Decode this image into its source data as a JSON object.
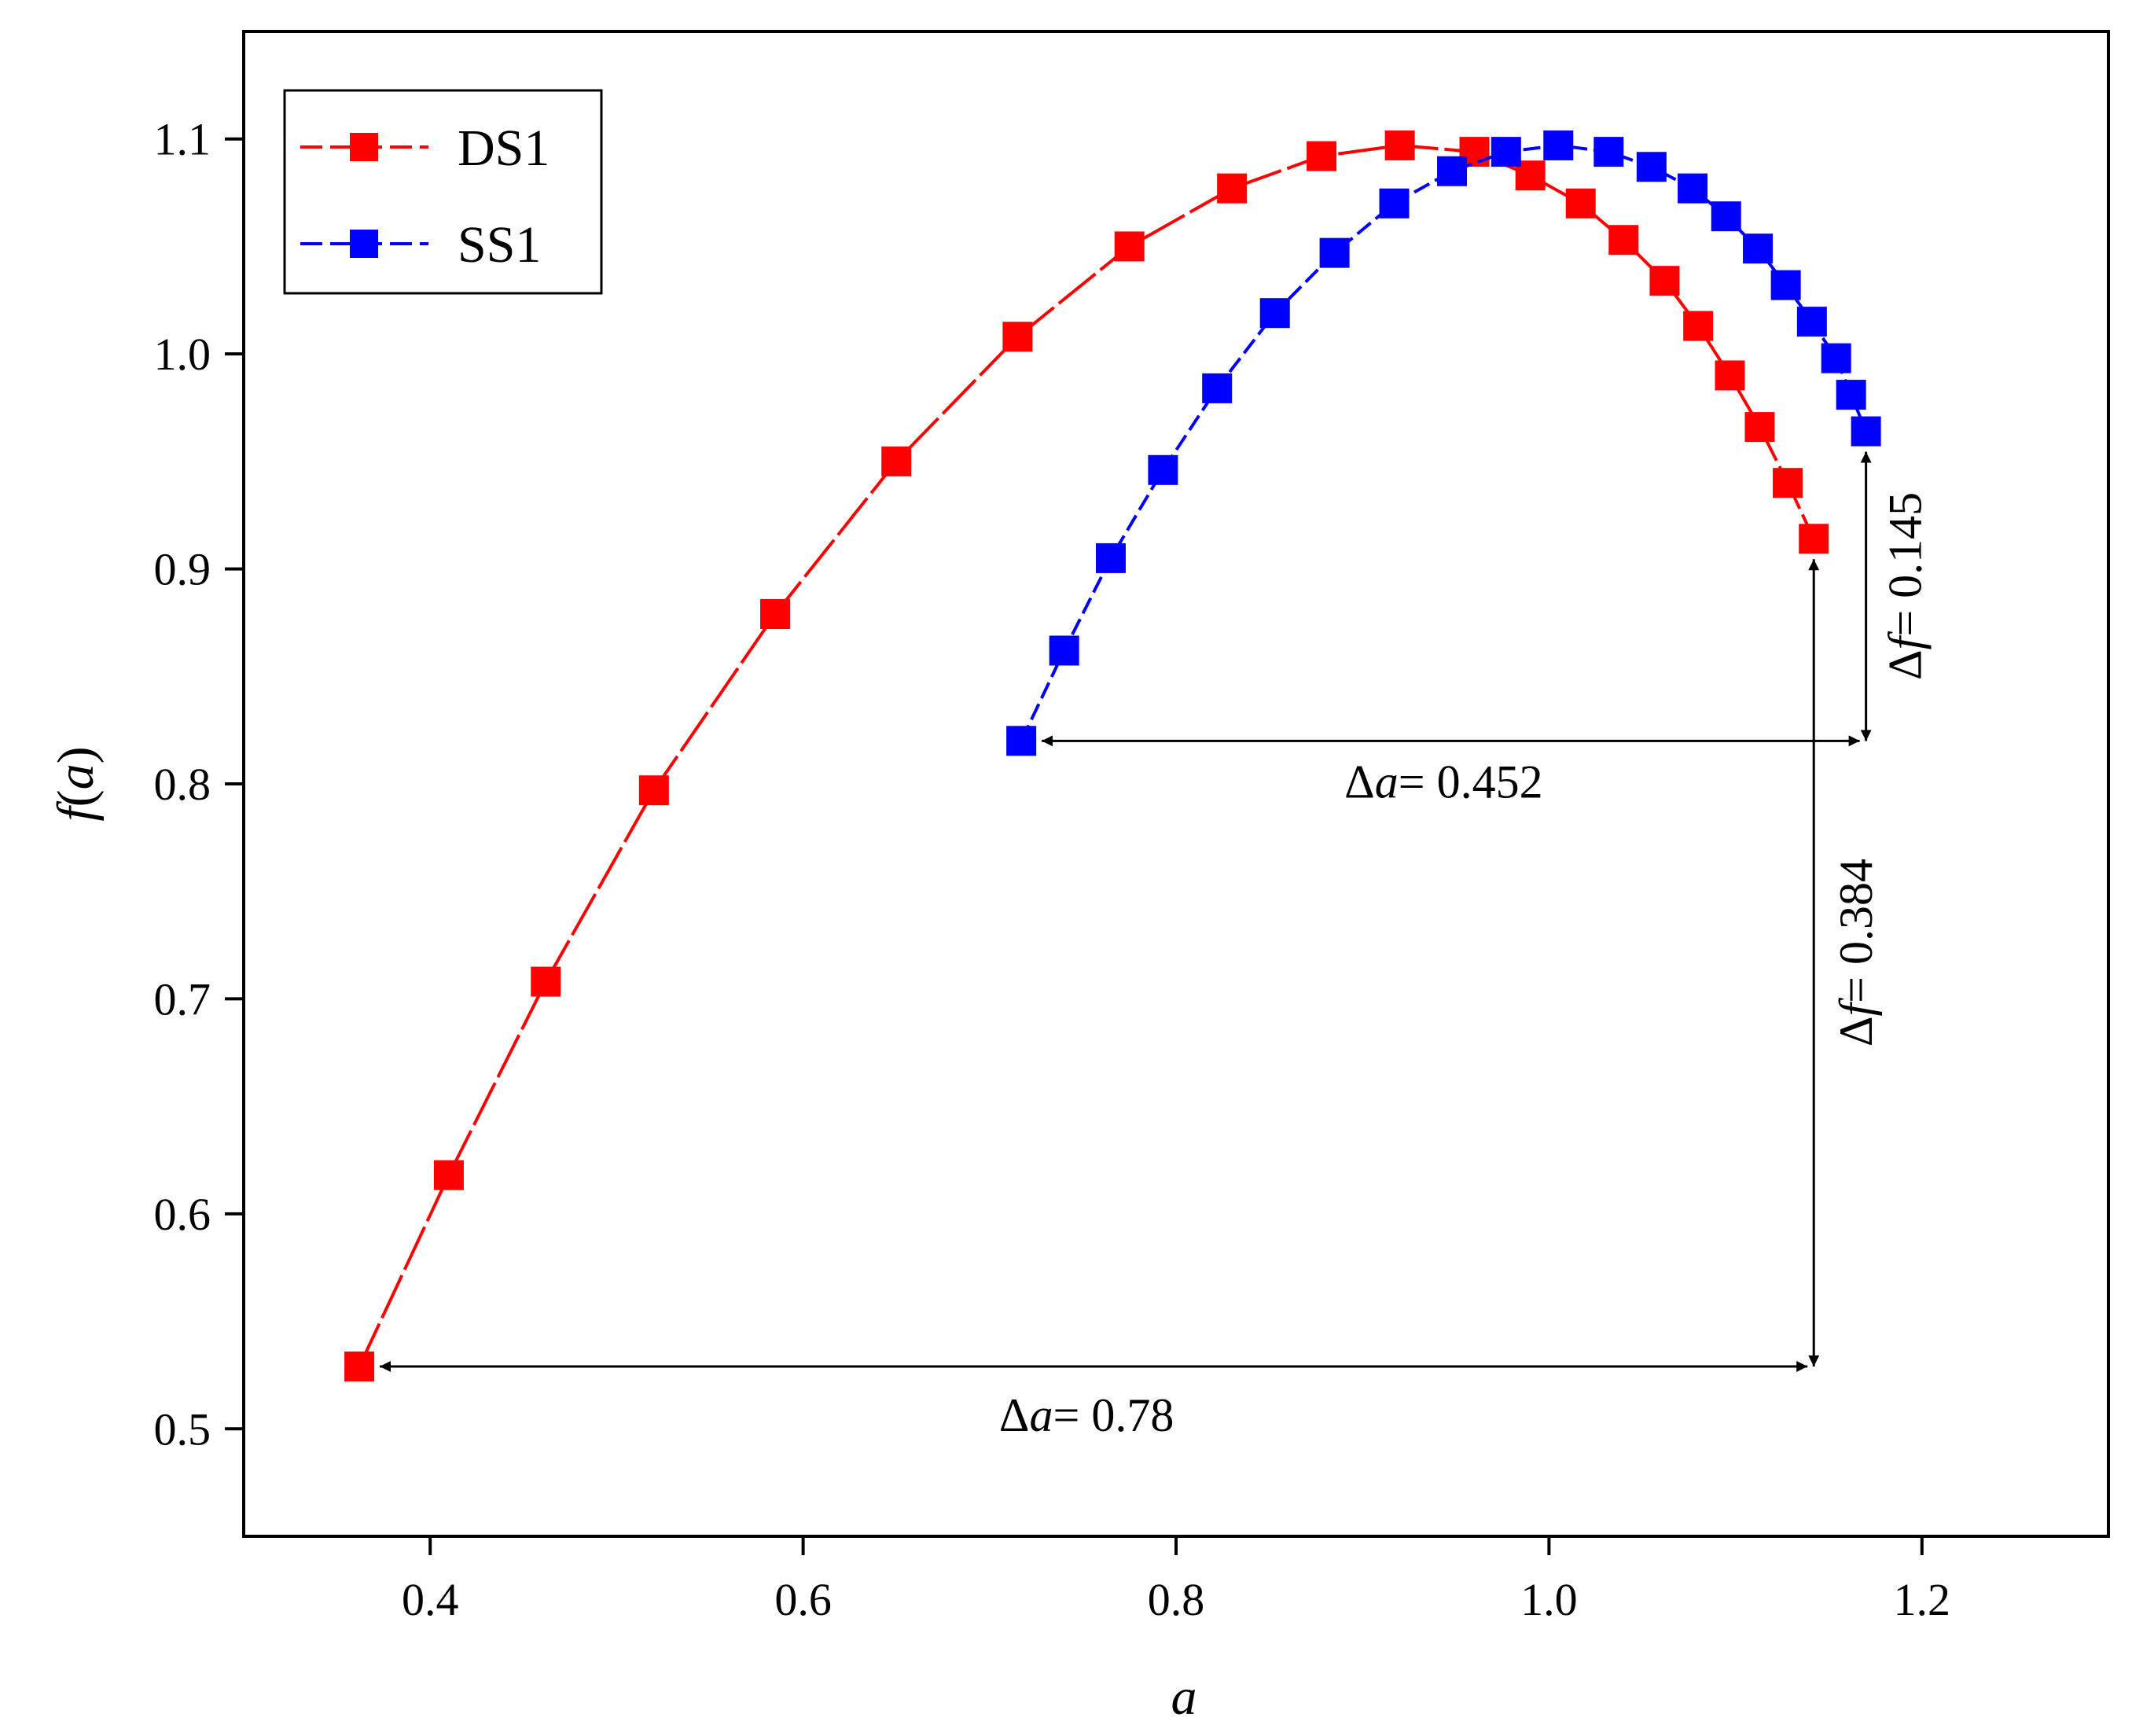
{
  "chart_data": {
    "type": "line",
    "title": "",
    "xlabel": "a",
    "ylabel_func": "f",
    "ylabel_arg": "a",
    "xlim": [
      0.3,
      1.3
    ],
    "ylim": [
      0.45,
      1.15
    ],
    "xticks": [
      0.4,
      0.6,
      0.8,
      1.0,
      1.2
    ],
    "xtick_labels": [
      "0.4",
      "0.6",
      "0.8",
      "1.0",
      "1.2"
    ],
    "yticks": [
      0.5,
      0.6,
      0.7,
      0.8,
      0.9,
      1.0,
      1.1
    ],
    "ytick_labels": [
      "0.5",
      "0.6",
      "0.7",
      "0.8",
      "0.9",
      "1.0",
      "1.1"
    ],
    "legend_position": "top-left",
    "series": [
      {
        "name": "DS1",
        "color": "#ff0000",
        "marker": "square",
        "points": [
          [
            0.362,
            0.529
          ],
          [
            0.41,
            0.618
          ],
          [
            0.462,
            0.708
          ],
          [
            0.52,
            0.797
          ],
          [
            0.585,
            0.879
          ],
          [
            0.65,
            0.95
          ],
          [
            0.715,
            1.008
          ],
          [
            0.775,
            1.05
          ],
          [
            0.83,
            1.077
          ],
          [
            0.878,
            1.092
          ],
          [
            0.92,
            1.097
          ],
          [
            0.96,
            1.094
          ],
          [
            0.99,
            1.083
          ],
          [
            1.017,
            1.07
          ],
          [
            1.04,
            1.053
          ],
          [
            1.062,
            1.034
          ],
          [
            1.08,
            1.013
          ],
          [
            1.097,
            0.99
          ],
          [
            1.113,
            0.966
          ],
          [
            1.128,
            0.94
          ],
          [
            1.142,
            0.914
          ]
        ]
      },
      {
        "name": "SS1",
        "color": "#0000ff",
        "marker": "square",
        "points": [
          [
            0.717,
            0.82
          ],
          [
            0.74,
            0.862
          ],
          [
            0.765,
            0.905
          ],
          [
            0.793,
            0.946
          ],
          [
            0.822,
            0.984
          ],
          [
            0.853,
            1.019
          ],
          [
            0.885,
            1.047
          ],
          [
            0.917,
            1.07
          ],
          [
            0.948,
            1.085
          ],
          [
            0.977,
            1.094
          ],
          [
            1.005,
            1.097
          ],
          [
            1.032,
            1.094
          ],
          [
            1.055,
            1.087
          ],
          [
            1.077,
            1.077
          ],
          [
            1.095,
            1.064
          ],
          [
            1.112,
            1.049
          ],
          [
            1.127,
            1.032
          ],
          [
            1.141,
            1.015
          ],
          [
            1.154,
            0.998
          ],
          [
            1.162,
            0.981
          ],
          [
            1.17,
            0.964
          ]
        ]
      }
    ],
    "annotations": [
      {
        "delta_symbol": "Δ",
        "var": "a",
        "text": "= 0.452",
        "x1": 0.717,
        "x2": 1.17,
        "y": 0.82
      },
      {
        "delta_symbol": "Δ",
        "var": "a",
        "text": "= 0.78",
        "x1": 0.362,
        "x2": 1.142,
        "y": 0.529
      },
      {
        "delta_symbol": "Δ",
        "var": "f",
        "text": "= 0.145",
        "x": 1.17,
        "y1": 0.82,
        "y2": 0.964
      },
      {
        "delta_symbol": "Δ",
        "var": "f",
        "text": "= 0.384",
        "x": 1.142,
        "y1": 0.529,
        "y2": 0.914
      }
    ]
  }
}
